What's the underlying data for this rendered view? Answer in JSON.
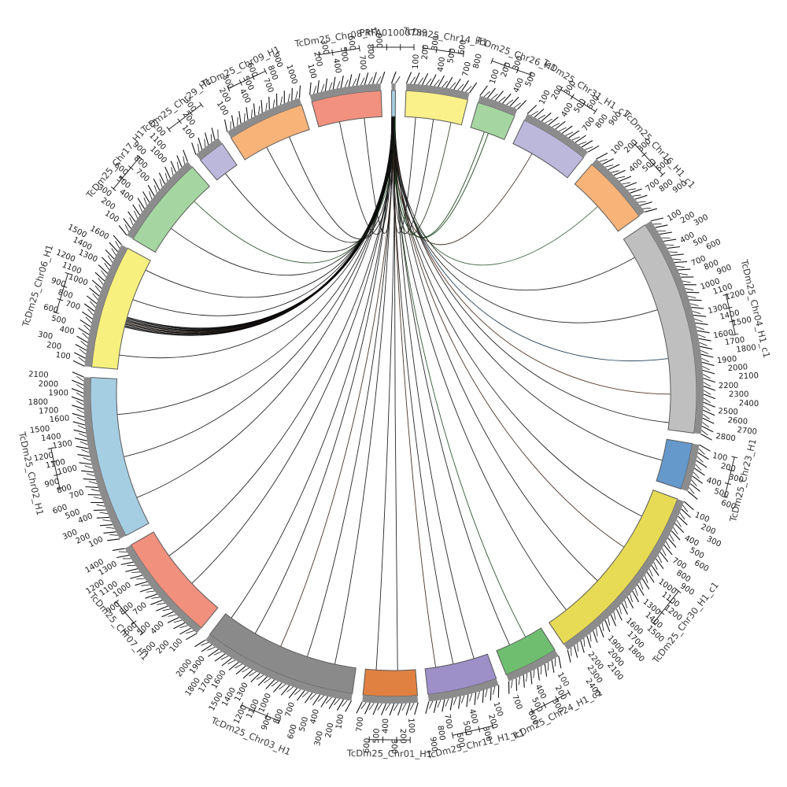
{
  "figure": {
    "background": "#ffffff"
  },
  "chart_data": {
    "type": "circos-synteny",
    "description": "Circular synteny plot: one small contig at top linked to chromosomes of assembly TcDm25",
    "hub_segment": "PRFA01000789",
    "layout": {
      "center": [
        500,
        500
      ],
      "band_inner_radius": 352,
      "band_outer_radius": 385,
      "cap_outer_radius": 394,
      "tick_len_major": 15,
      "tick_len_minor": 9,
      "tick_label_radius": 413,
      "tick_label_row_step": 13,
      "name_label_radius": 458,
      "ruler_radius": 440,
      "gap_degrees": 2.0,
      "tick_label_every_units": 100,
      "minor_tick_units": 50,
      "grid": false,
      "legend": "none"
    },
    "colors": {
      "cap": "#8C8C8C",
      "outline": "#5A5A5A",
      "tick": "#111111",
      "tick_text": "#1A1A1A",
      "label_text": "#3A3A3A",
      "link_default": "#141414"
    },
    "segments": [
      {
        "name": "PRFA01000789",
        "size": 50,
        "color": "#A6CEE3"
      },
      {
        "name": "TcDm25_Chr14_H1",
        "size": 800,
        "color": "#FAF18B"
      },
      {
        "name": "TcDm25_Chr26_H1",
        "size": 500,
        "color": "#A5D6A1"
      },
      {
        "name": "TcDm25_Chr31_H1_c1",
        "size": 900,
        "color": "#BCB8DC"
      },
      {
        "name": "TcDm25_Chr16_H1_c1",
        "size": 900,
        "color": "#F8B379"
      },
      {
        "name": "TcDm25_Chr04_H1_c1",
        "size": 2800,
        "color": "#BFBFBF"
      },
      {
        "name": "TcDm25_Chr23_H1",
        "size": 600,
        "color": "#6598CB"
      },
      {
        "name": "TcDm25_Chr30_H1_c1",
        "size": 2400,
        "color": "#E7DB55"
      },
      {
        "name": "TcDm25_Chr24_H1_c1",
        "size": 700,
        "color": "#6FBE70"
      },
      {
        "name": "TcDm25_Chr11_H1_c1",
        "size": 900,
        "color": "#9D8FC7"
      },
      {
        "name": "TcDm25_Chr01_H1",
        "size": 700,
        "color": "#E08142"
      },
      {
        "name": "TcDm25_Chr03_H1",
        "size": 2000,
        "color": "#8A8A8A"
      },
      {
        "name": "TcDm25_Chr07_H1",
        "size": 1400,
        "color": "#F2907E"
      },
      {
        "name": "TcDm25_Chr02_H1",
        "size": 2100,
        "color": "#A6CEE3"
      },
      {
        "name": "TcDm25_Chr06_H1",
        "size": 1600,
        "color": "#F7F07E"
      },
      {
        "name": "TcDm25_Chr17_H1",
        "size": 1200,
        "color": "#A5D6A1"
      },
      {
        "name": "TcDm25_Chr29_H1",
        "size": 350,
        "color": "#BCB8DC"
      },
      {
        "name": "TcDm25_Chr09_H1",
        "size": 1000,
        "color": "#F8B379"
      },
      {
        "name": "TcDm25_Chr08_H1",
        "size": 900,
        "color": "#F2917F"
      }
    ],
    "links": [
      {
        "to": "TcDm25_Chr14_H1",
        "pos": 150,
        "color": "#141414",
        "w": 0.9
      },
      {
        "to": "TcDm25_Chr14_H1",
        "pos": 400,
        "color": "#141414",
        "w": 0.9
      },
      {
        "to": "TcDm25_Chr14_H1",
        "pos": 650,
        "color": "#2A3A20",
        "w": 0.9
      },
      {
        "to": "TcDm25_Chr26_H1",
        "pos": 200,
        "color": "#234A23",
        "w": 1.0
      },
      {
        "to": "TcDm25_Chr26_H1",
        "pos": 260,
        "color": "#234A23",
        "w": 1.0
      },
      {
        "to": "TcDm25_Chr31_H1_c1",
        "pos": 300,
        "color": "#3A2418",
        "w": 0.9
      },
      {
        "to": "TcDm25_Chr16_H1_c1",
        "pos": 450,
        "color": "#355E3B",
        "w": 0.9
      },
      {
        "to": "TcDm25_Chr04_H1_c1",
        "pos": 300,
        "color": "#141414",
        "w": 0.9
      },
      {
        "to": "TcDm25_Chr04_H1_c1",
        "pos": 1100,
        "color": "#141414",
        "w": 0.9
      },
      {
        "to": "TcDm25_Chr04_H1_c1",
        "pos": 1800,
        "color": "#13334D",
        "w": 0.9
      },
      {
        "to": "TcDm25_Chr04_H1_c1",
        "pos": 2300,
        "color": "#4A2313",
        "w": 0.9
      },
      {
        "to": "TcDm25_Chr04_H1_c1",
        "pos": 2700,
        "color": "#141414",
        "w": 0.9
      },
      {
        "to": "TcDm25_Chr23_H1",
        "pos": 300,
        "color": "#141414",
        "w": 0.9
      },
      {
        "to": "TcDm25_Chr30_H1_c1",
        "pos": 400,
        "color": "#141414",
        "w": 0.9
      },
      {
        "to": "TcDm25_Chr30_H1_c1",
        "pos": 900,
        "color": "#3A2418",
        "w": 0.9
      },
      {
        "to": "TcDm25_Chr30_H1_c1",
        "pos": 1500,
        "color": "#141414",
        "w": 0.9
      },
      {
        "to": "TcDm25_Chr30_H1_c1",
        "pos": 2100,
        "color": "#141414",
        "w": 0.9
      },
      {
        "to": "TcDm25_Chr24_H1_c1",
        "pos": 250,
        "color": "#234A23",
        "w": 0.9
      },
      {
        "to": "TcDm25_Chr24_H1_c1",
        "pos": 500,
        "color": "#141414",
        "w": 0.9
      },
      {
        "to": "TcDm25_Chr11_H1_c1",
        "pos": 200,
        "color": "#141414",
        "w": 0.9
      },
      {
        "to": "TcDm25_Chr11_H1_c1",
        "pos": 500,
        "color": "#141414",
        "w": 0.9
      },
      {
        "to": "TcDm25_Chr11_H1_c1",
        "pos": 750,
        "color": "#3A2418",
        "w": 0.9
      },
      {
        "to": "TcDm25_Chr01_H1",
        "pos": 250,
        "color": "#141414",
        "w": 0.9
      },
      {
        "to": "TcDm25_Chr01_H1",
        "pos": 550,
        "color": "#141414",
        "w": 0.9
      },
      {
        "to": "TcDm25_Chr03_H1",
        "pos": 300,
        "color": "#141414",
        "w": 0.9
      },
      {
        "to": "TcDm25_Chr03_H1",
        "pos": 700,
        "color": "#141414",
        "w": 0.9
      },
      {
        "to": "TcDm25_Chr03_H1",
        "pos": 1100,
        "color": "#3A2418",
        "w": 0.9
      },
      {
        "to": "TcDm25_Chr03_H1",
        "pos": 1500,
        "color": "#141414",
        "w": 0.9
      },
      {
        "to": "TcDm25_Chr03_H1",
        "pos": 1900,
        "color": "#141414",
        "w": 0.9
      },
      {
        "to": "TcDm25_Chr07_H1",
        "pos": 500,
        "color": "#141414",
        "w": 0.9
      },
      {
        "to": "TcDm25_Chr07_H1",
        "pos": 1000,
        "color": "#141414",
        "w": 0.9
      },
      {
        "to": "TcDm25_Chr02_H1",
        "pos": 400,
        "color": "#141414",
        "w": 0.9
      },
      {
        "to": "TcDm25_Chr02_H1",
        "pos": 1000,
        "color": "#141414",
        "w": 0.9
      },
      {
        "to": "TcDm25_Chr02_H1",
        "pos": 1600,
        "color": "#141414",
        "w": 0.9
      },
      {
        "to": "TcDm25_Chr06_H1",
        "pos": 200,
        "color": "#141414",
        "w": 0.9
      },
      {
        "to": "TcDm25_Chr06_H1",
        "pos": 600,
        "color": "#000000",
        "w": 1.3
      },
      {
        "to": "TcDm25_Chr06_H1",
        "pos": 620,
        "color": "#000000",
        "w": 1.3
      },
      {
        "to": "TcDm25_Chr06_H1",
        "pos": 640,
        "color": "#000000",
        "w": 1.3
      },
      {
        "to": "TcDm25_Chr06_H1",
        "pos": 660,
        "color": "#1A0F0A",
        "w": 1.3
      },
      {
        "to": "TcDm25_Chr06_H1",
        "pos": 680,
        "color": "#000000",
        "w": 1.3
      },
      {
        "to": "TcDm25_Chr06_H1",
        "pos": 700,
        "color": "#000000",
        "w": 1.3
      },
      {
        "to": "TcDm25_Chr06_H1",
        "pos": 720,
        "color": "#000000",
        "w": 1.3
      },
      {
        "to": "TcDm25_Chr06_H1",
        "pos": 740,
        "color": "#000000",
        "w": 1.3
      },
      {
        "to": "TcDm25_Chr06_H1",
        "pos": 1000,
        "color": "#141414",
        "w": 0.9
      },
      {
        "to": "TcDm25_Chr06_H1",
        "pos": 1450,
        "color": "#141414",
        "w": 0.9
      },
      {
        "to": "TcDm25_Chr17_H1",
        "pos": 400,
        "color": "#141414",
        "w": 0.9
      },
      {
        "to": "TcDm25_Chr17_H1",
        "pos": 900,
        "color": "#234A23",
        "w": 0.9
      },
      {
        "to": "TcDm25_Chr29_H1",
        "pos": 150,
        "color": "#141414",
        "w": 0.9
      },
      {
        "to": "TcDm25_Chr09_H1",
        "pos": 350,
        "color": "#141414",
        "w": 0.9
      },
      {
        "to": "TcDm25_Chr09_H1",
        "pos": 700,
        "color": "#141414",
        "w": 0.9
      },
      {
        "to": "TcDm25_Chr08_H1",
        "pos": 300,
        "color": "#141414",
        "w": 0.9
      },
      {
        "to": "TcDm25_Chr08_H1",
        "pos": 650,
        "color": "#141414",
        "w": 0.9
      }
    ]
  }
}
